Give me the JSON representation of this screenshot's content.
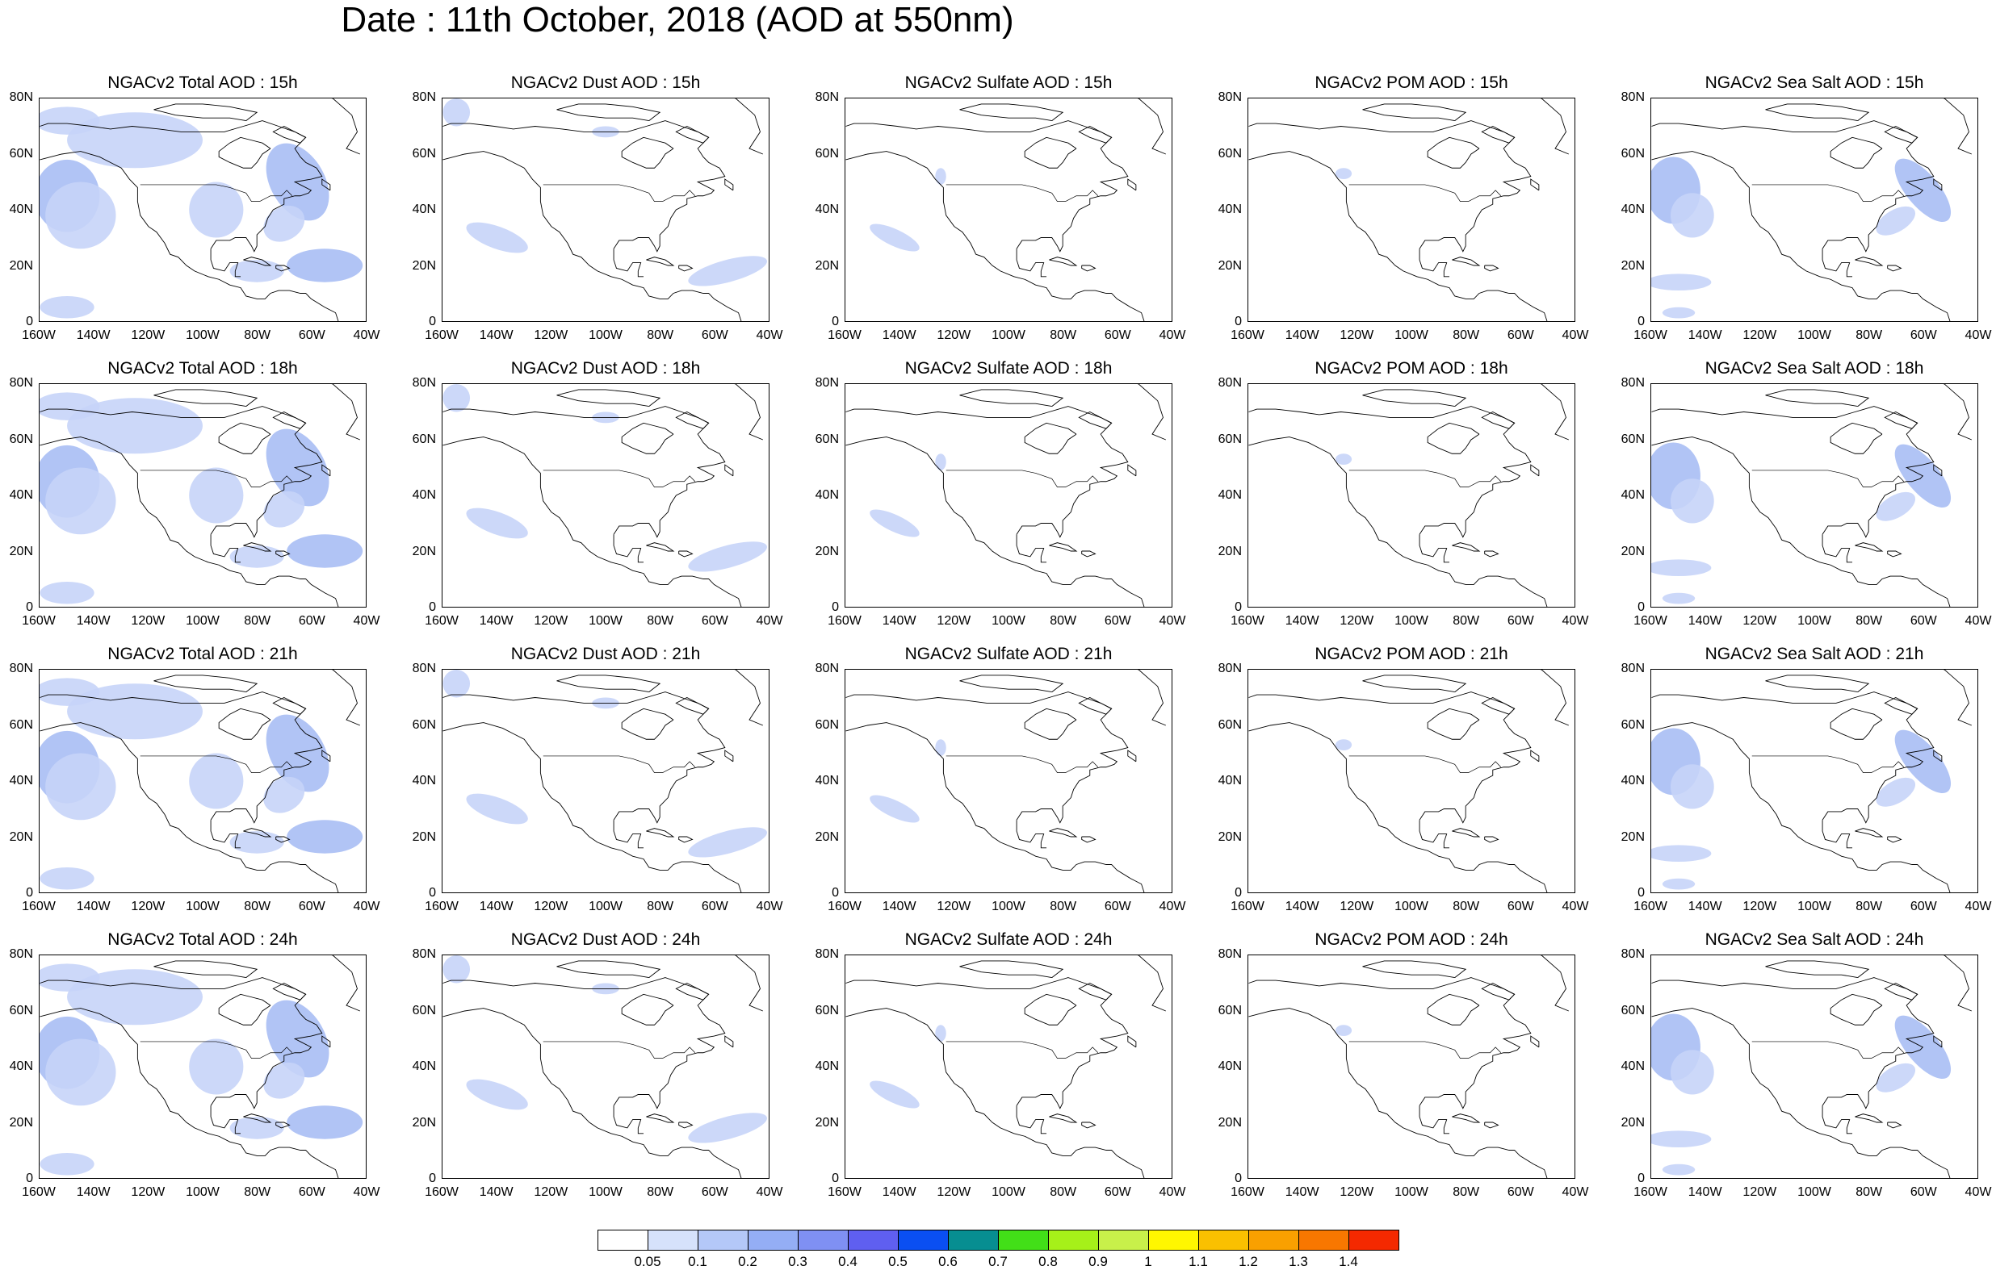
{
  "title": "Date : 11th October, 2018 (AOD at 550nm)",
  "lat_ticks": [
    "80N",
    "60N",
    "40N",
    "20N",
    "0"
  ],
  "lon_ticks": [
    "160W",
    "140W",
    "120W",
    "100W",
    "80W",
    "60W",
    "40W"
  ],
  "rows": [
    {
      "hour": "15h",
      "titles": [
        "NGACv2 Total AOD : 15h",
        "NGACv2 Dust AOD : 15h",
        "NGACv2 Sulfate AOD : 15h",
        "NGACv2 POM AOD : 15h",
        "NGACv2 Sea Salt AOD : 15h"
      ]
    },
    {
      "hour": "18h",
      "titles": [
        "NGACv2 Total AOD : 18h",
        "NGACv2 Dust AOD : 18h",
        "NGACv2 Sulfate AOD : 18h",
        "NGACv2 POM AOD : 18h",
        "NGACv2 Sea Salt AOD : 18h"
      ]
    },
    {
      "hour": "21h",
      "titles": [
        "NGACv2 Total AOD : 21h",
        "NGACv2 Dust AOD : 21h",
        "NGACv2 Sulfate AOD : 21h",
        "NGACv2 POM AOD : 21h",
        "NGACv2 Sea Salt AOD : 21h"
      ]
    },
    {
      "hour": "24h",
      "titles": [
        "NGACv2 Total AOD : 24h",
        "NGACv2 Dust AOD : 24h",
        "NGACv2 Sulfate AOD : 24h",
        "NGACv2 POM AOD : 24h",
        "NGACv2 Sea Salt  AOD : 24h"
      ]
    }
  ],
  "colorbar": {
    "labels": [
      "0.05",
      "0.1",
      "0.2",
      "0.3",
      "0.4",
      "0.5",
      "0.6",
      "0.7",
      "0.8",
      "0.9",
      "1",
      "1.1",
      "1.2",
      "1.3",
      "1.4"
    ],
    "colors": [
      "#ffffff",
      "#d6e2fb",
      "#b4c8f8",
      "#94aef5",
      "#7f90f3",
      "#5f5ff0",
      "#0a4ff2",
      "#078e91",
      "#42df18",
      "#a6f019",
      "#c8f04a",
      "#fff700",
      "#fac000",
      "#f9a000",
      "#f87700",
      "#f42900"
    ]
  },
  "map_style": {
    "aod_fill": "#c6d4f8",
    "aod_fill_dark": "#a9bef4",
    "coast": "#000000"
  }
}
